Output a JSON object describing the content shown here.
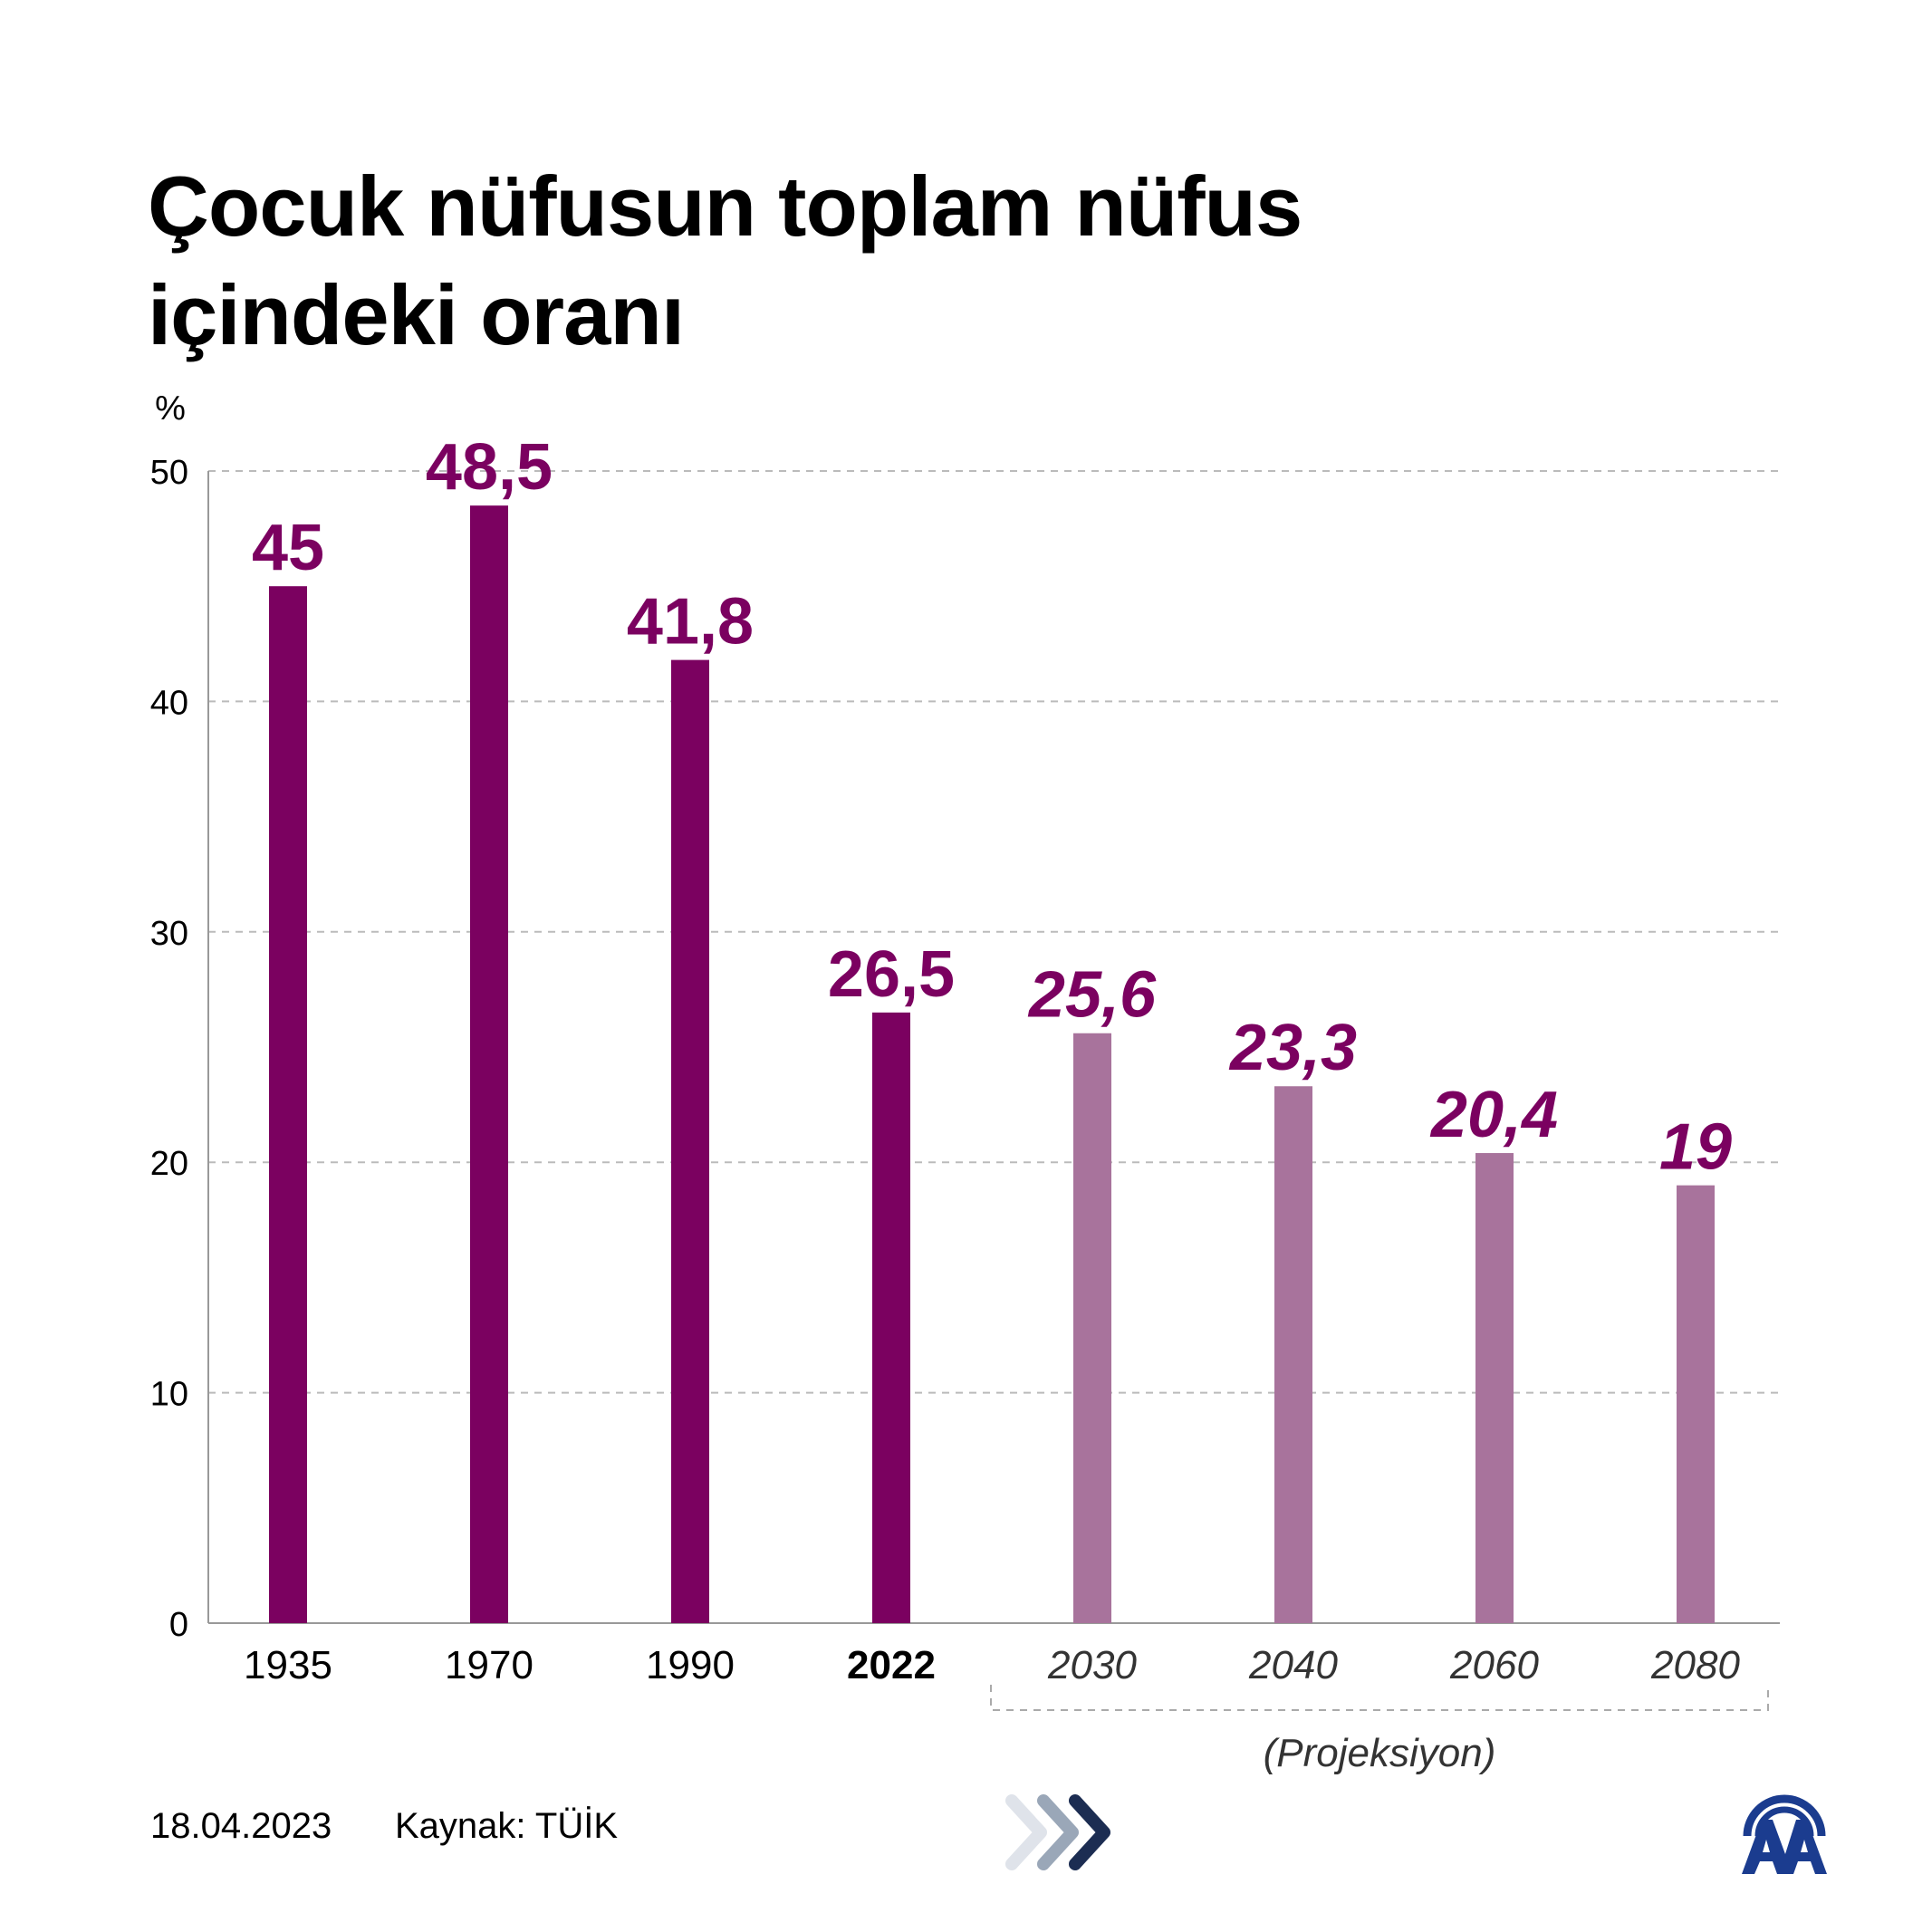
{
  "title": "Çocuk nüfusun toplam nüfus içindeki oranı",
  "footer": {
    "date": "18.04.2023",
    "source_label": "Kaynak:",
    "source": "TÜİK"
  },
  "logo": "AA",
  "colors": {
    "actual_bar": "#7b0160",
    "projection_bar": "#a8739c",
    "label": "#7b0160",
    "grid": "#bbbbbb",
    "chevron_light": "#dfe3ea",
    "chevron_mid": "#9aa7b8",
    "chevron_dark": "#1c2d52",
    "logo": "#1b3c8f"
  },
  "chart_data": {
    "type": "bar",
    "title": "Çocuk nüfusun toplam nüfus içindeki oranı",
    "ylabel": "%",
    "xlabel": "",
    "ylim": [
      0,
      50
    ],
    "yticks": [
      0,
      10,
      20,
      30,
      40,
      50
    ],
    "grid": true,
    "categories": [
      "1935",
      "1970",
      "1990",
      "2022",
      "2030",
      "2040",
      "2060",
      "2080"
    ],
    "values": [
      45,
      48.5,
      41.8,
      26.5,
      25.6,
      23.3,
      20.4,
      19
    ],
    "value_labels": [
      "45",
      "48,5",
      "41,8",
      "26,5",
      "25,6",
      "23,3",
      "20,4",
      "19"
    ],
    "projection": [
      false,
      false,
      false,
      false,
      true,
      true,
      true,
      true
    ],
    "emphasized_category": "2022",
    "projection_label": "(Projeksiyon)"
  }
}
